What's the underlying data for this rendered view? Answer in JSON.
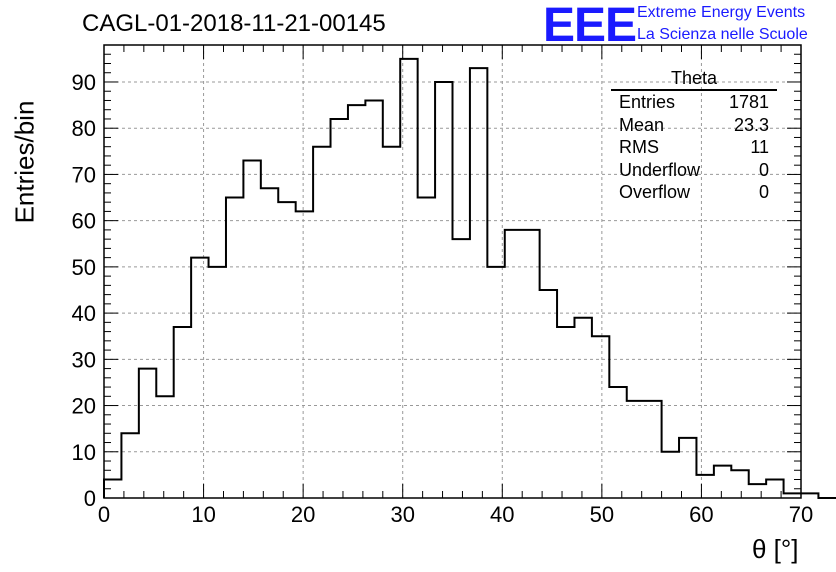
{
  "header": {
    "title": "CAGL-01-2018-11-21-00145",
    "logo_text": "EEE",
    "logo_line1": "Extreme Energy Events",
    "logo_line2": "La Scienza nelle Scuole"
  },
  "stats": {
    "title": "Theta",
    "rows": [
      {
        "label": "Entries",
        "value": "1781"
      },
      {
        "label": "Mean",
        "value": "23.3"
      },
      {
        "label": "RMS",
        "value": "11"
      },
      {
        "label": "Underflow",
        "value": "0"
      },
      {
        "label": "Overflow",
        "value": "0"
      }
    ]
  },
  "colors": {
    "logo": "#1a1aff",
    "line": "#000000",
    "grid": "#999999"
  },
  "chart_data": {
    "type": "histogram",
    "xlabel": "θ [°]",
    "ylabel": "Entries/bin",
    "xlim": [
      0,
      70
    ],
    "ylim": [
      0,
      98
    ],
    "grid": true,
    "bin_width": 1.75,
    "x_ticks": [
      0,
      10,
      20,
      30,
      40,
      50,
      60,
      70
    ],
    "y_ticks": [
      0,
      10,
      20,
      30,
      40,
      50,
      60,
      70,
      80,
      90
    ],
    "values": [
      4,
      14,
      28,
      22,
      37,
      52,
      50,
      65,
      73,
      67,
      64,
      62,
      76,
      82,
      85,
      86,
      76,
      95,
      65,
      90,
      56,
      93,
      50,
      58,
      58,
      45,
      37,
      39,
      35,
      24,
      21,
      21,
      10,
      13,
      5,
      7,
      6,
      3,
      4,
      1,
      1,
      0,
      0,
      0,
      0,
      0,
      0,
      0
    ]
  }
}
